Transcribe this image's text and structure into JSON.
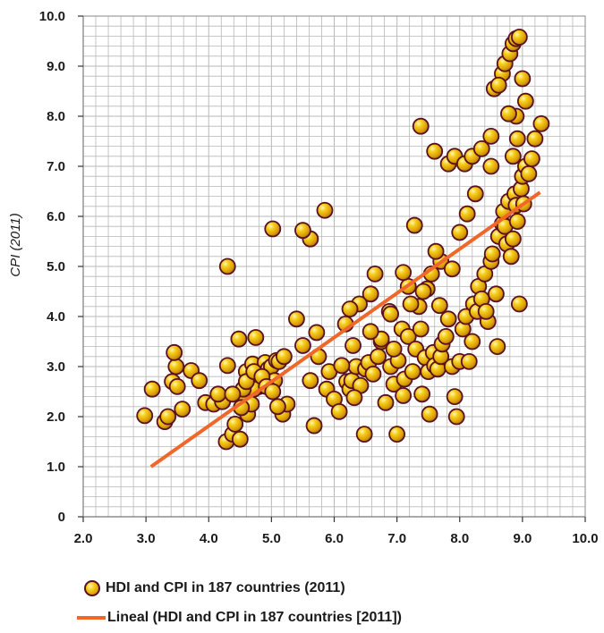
{
  "chart_data": {
    "type": "scatter",
    "title": "",
    "xlabel": "",
    "ylabel": "CPI (2011)",
    "xlim": [
      2.0,
      10.0
    ],
    "ylim": [
      0,
      10.0
    ],
    "x_ticks": [
      "2.0",
      "3.0",
      "4.0",
      "5.0",
      "6.0",
      "7.0",
      "8.0",
      "9.0",
      "10.0"
    ],
    "y_ticks": [
      "0",
      "1.0",
      "2.0",
      "3.0",
      "4.0",
      "5.0",
      "6.0",
      "7.0",
      "8.0",
      "9.0",
      "10.0"
    ],
    "grid": true,
    "legend_position": "bottom",
    "colors": {
      "marker_fill": "#f2c20f",
      "marker_outline": "#5a1020",
      "trendline": "#f0672a",
      "grid": "#b9b9b9"
    },
    "series": [
      {
        "name": "HDI and CPI in 187 countries (2011)",
        "kind": "scatter",
        "x": [
          2.98,
          3.1,
          3.3,
          3.35,
          3.42,
          3.48,
          3.45,
          3.5,
          3.58,
          3.72,
          3.85,
          3.95,
          4.08,
          4.3,
          4.28,
          4.38,
          4.48,
          4.55,
          4.6,
          4.7,
          4.75,
          4.8,
          4.9,
          4.95,
          5.0,
          5.05,
          4.62,
          4.68,
          4.72,
          5.08,
          5.12,
          5.18,
          5.25,
          5.4,
          5.1,
          5.2,
          4.5,
          4.55,
          4.22,
          4.15,
          4.42,
          4.52,
          4.38,
          4.6,
          4.72,
          4.85,
          4.92,
          5.02,
          5.5,
          5.62,
          5.68,
          5.75,
          5.88,
          5.92,
          6.0,
          6.08,
          6.12,
          6.2,
          6.25,
          6.28,
          6.35,
          6.42,
          6.48,
          6.5,
          6.55,
          6.62,
          6.7,
          6.75,
          6.82,
          6.9,
          6.95,
          7.0,
          7.02,
          7.08,
          7.1,
          7.12,
          7.18,
          7.25,
          7.3,
          7.38,
          7.4,
          7.45,
          7.5,
          7.52,
          7.58,
          7.6,
          7.65,
          7.7,
          7.72,
          7.78,
          7.82,
          7.88,
          7.92,
          7.95,
          8.0,
          8.05,
          8.1,
          8.15,
          8.2,
          8.22,
          8.28,
          8.3,
          8.35,
          8.4,
          8.45,
          8.5,
          8.52,
          8.58,
          8.6,
          8.62,
          8.68,
          8.7,
          8.72,
          8.75,
          8.78,
          8.82,
          8.85,
          8.88,
          8.9,
          8.92,
          8.95,
          8.98,
          9.0,
          9.02,
          9.05,
          9.1,
          9.15,
          9.2,
          9.3,
          8.55,
          8.68,
          8.72,
          8.8,
          8.85,
          8.9,
          8.95,
          9.0,
          9.05,
          8.5,
          8.85,
          8.9,
          8.78,
          8.92,
          7.38,
          7.82,
          7.92,
          8.08,
          8.2,
          8.35,
          8.5,
          7.6,
          7.7,
          7.55,
          7.48,
          7.62,
          7.35,
          7.28,
          7.18,
          7.22,
          7.1,
          6.95,
          6.88,
          6.75,
          6.65,
          6.58,
          6.4,
          6.25,
          6.18,
          6.32,
          6.12,
          5.72,
          5.62,
          5.02,
          4.3,
          5.5,
          5.85,
          6.3,
          6.58,
          6.9,
          7.42,
          7.68,
          7.88,
          8.0,
          8.12,
          8.25,
          8.42,
          8.62
        ],
        "y": [
          2.02,
          2.55,
          1.9,
          2.0,
          2.7,
          3.0,
          3.28,
          2.6,
          2.15,
          2.92,
          2.72,
          2.28,
          2.25,
          3.02,
          1.5,
          1.65,
          3.55,
          2.45,
          2.9,
          3.05,
          3.58,
          2.6,
          3.08,
          2.95,
          3.0,
          2.72,
          2.05,
          2.25,
          2.55,
          3.12,
          3.1,
          2.05,
          2.25,
          3.95,
          2.2,
          3.2,
          1.55,
          2.55,
          2.3,
          2.45,
          1.85,
          2.18,
          2.45,
          2.7,
          2.9,
          2.8,
          2.6,
          2.5,
          3.42,
          2.72,
          1.82,
          3.2,
          2.55,
          2.9,
          2.35,
          2.1,
          3.02,
          2.7,
          2.55,
          2.72,
          3.0,
          2.62,
          1.65,
          2.95,
          3.08,
          2.85,
          3.2,
          3.5,
          2.28,
          3.0,
          2.65,
          1.65,
          3.12,
          3.75,
          2.42,
          2.75,
          3.6,
          2.9,
          3.35,
          3.75,
          2.45,
          3.18,
          2.9,
          2.05,
          3.28,
          3.02,
          2.95,
          3.2,
          3.45,
          3.6,
          3.95,
          3.0,
          2.4,
          2.0,
          3.1,
          3.75,
          4.0,
          3.1,
          3.5,
          4.25,
          4.1,
          4.6,
          4.35,
          4.85,
          3.9,
          5.1,
          5.25,
          4.45,
          3.4,
          5.6,
          5.85,
          6.1,
          5.8,
          5.45,
          6.3,
          5.2,
          5.55,
          6.45,
          6.22,
          5.9,
          4.25,
          6.55,
          6.8,
          6.25,
          7.0,
          6.85,
          7.15,
          7.55,
          7.85,
          8.55,
          8.85,
          9.05,
          9.25,
          9.45,
          9.55,
          9.58,
          8.75,
          8.3,
          7.6,
          7.2,
          8.0,
          8.05,
          7.55,
          7.8,
          7.05,
          7.2,
          7.05,
          7.2,
          7.35,
          7.0,
          7.3,
          5.1,
          4.85,
          4.55,
          5.3,
          4.2,
          5.82,
          4.6,
          4.25,
          4.88,
          3.35,
          4.1,
          3.55,
          4.85,
          4.45,
          4.25,
          4.15,
          3.85,
          2.38,
          3.02,
          3.68,
          5.55,
          5.75,
          5.0,
          5.72,
          6.12,
          3.42,
          3.7,
          4.05,
          4.5,
          4.22,
          4.95,
          5.68,
          6.05,
          6.45,
          4.1,
          8.62
        ]
      },
      {
        "name": "Lineal (HDI and CPI in 187 countries [2011])",
        "kind": "trendline",
        "x": [
          3.08,
          9.28
        ],
        "y": [
          1.0,
          6.48
        ]
      }
    ]
  },
  "legend": {
    "items": [
      {
        "label": "HDI and CPI in 187 countries (2011)",
        "marker": "circle"
      },
      {
        "label": "Lineal (HDI and CPI in 187 countries [2011])",
        "marker": "line"
      }
    ]
  }
}
